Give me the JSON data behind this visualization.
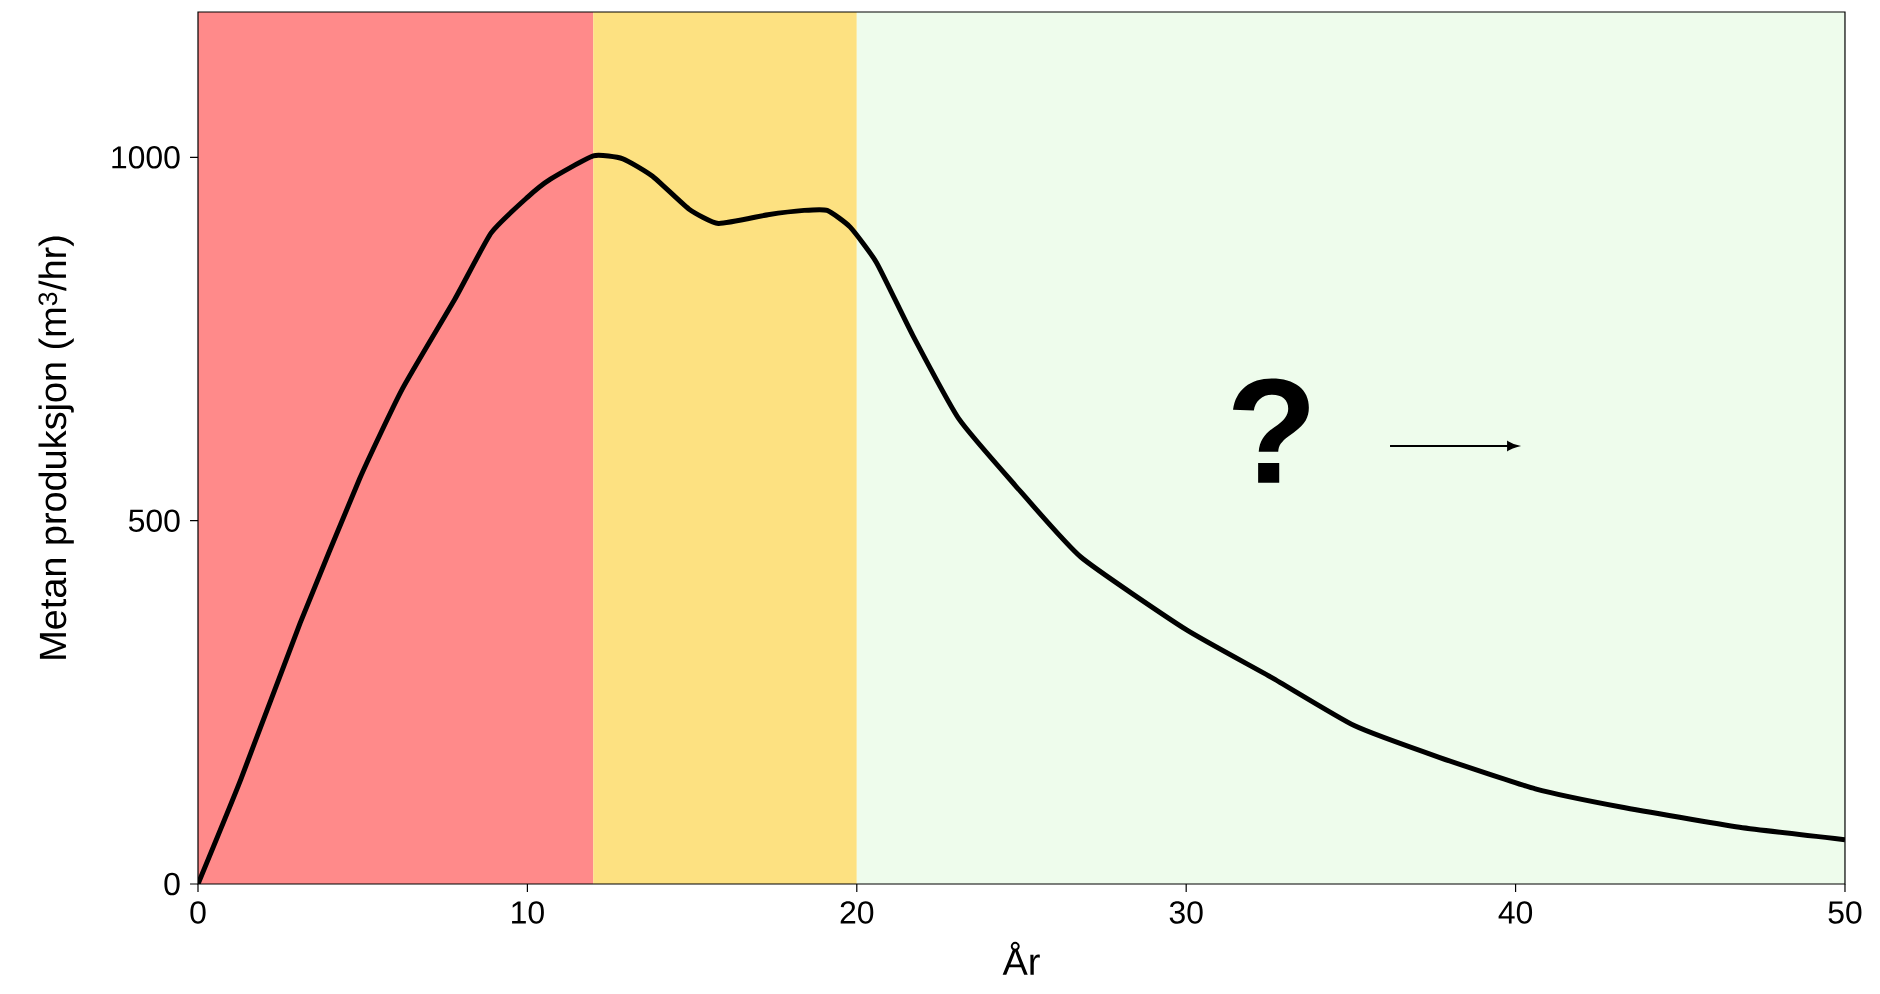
{
  "chart_data": {
    "type": "line",
    "xlabel": "År",
    "ylabel": "Metan produksjon (m$^{3}$/hr)",
    "xlim": [
      0,
      50
    ],
    "ylim": [
      0,
      1200
    ],
    "xticks": [
      0,
      10,
      20,
      30,
      40,
      50
    ],
    "yticks": [
      0,
      500,
      1000
    ],
    "grid": false,
    "marker": "none",
    "line_style": "solid",
    "annotations": [
      "?"
    ],
    "bands": [
      {
        "axis": "x",
        "from": 0,
        "to": 12,
        "color": "#ff8a8a"
      },
      {
        "axis": "x",
        "from": 12,
        "to": 20,
        "color": "#fde181"
      },
      {
        "axis": "x",
        "from": 20,
        "to": 50,
        "color": "#eefcec"
      }
    ],
    "series": [
      {
        "color": "#000000",
        "x": [
          0,
          1.3,
          3.1,
          4.9,
          6.2,
          7.8,
          8.9,
          10.0,
          10.7,
          12.0,
          12.9,
          13.8,
          14.9,
          15.8,
          17.3,
          18.4,
          19.1,
          19.8,
          20.6,
          21.7,
          23.1,
          24.8,
          26.8,
          30.0,
          32.6,
          35.1,
          37.7,
          40.6,
          43.2,
          46.8,
          50
        ],
        "values": [
          0,
          144,
          359,
          557,
          681,
          805,
          896,
          945,
          970,
          1002,
          998,
          974,
          929,
          909,
          921,
          927,
          927,
          904,
          855,
          755,
          640,
          549,
          450,
          350,
          284,
          218,
          174,
          131,
          106,
          78,
          61
        ]
      }
    ]
  }
}
